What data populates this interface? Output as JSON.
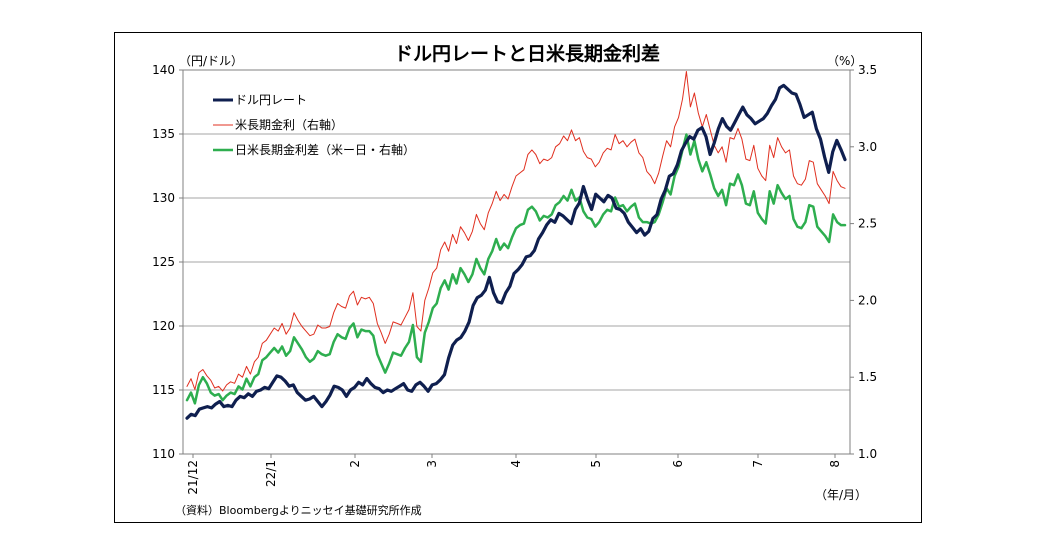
{
  "chart_data": {
    "type": "line",
    "title": "ドル円レートと日米長期金利差",
    "ylabel_left": "（円/ドル）",
    "ylabel_right": "（%）",
    "xlabel": "（年/月）",
    "source": "（資料）Bloombergよりニッセイ基礎研究所作成",
    "ylim_left": [
      110,
      140
    ],
    "ylim_right": [
      1.0,
      3.5
    ],
    "yticks_left": [
      "110",
      "115",
      "120",
      "125",
      "130",
      "135",
      "140"
    ],
    "yticks_right": [
      "1.0",
      "1.5",
      "2.0",
      "2.5",
      "3.0",
      "3.5"
    ],
    "x_tick_labels": [
      "21/12",
      "22/1",
      "2",
      "3",
      "4",
      "5",
      "6",
      "7",
      "8"
    ],
    "grid": "horizontal",
    "legend_position": "top-left",
    "series": [
      {
        "name": "ドル円レート",
        "axis": "left",
        "color": "#0f1f4f",
        "values": [
          112.8,
          113.1,
          113.0,
          113.5,
          113.6,
          113.7,
          113.6,
          113.9,
          114.1,
          113.7,
          113.8,
          113.7,
          114.2,
          114.5,
          114.4,
          114.7,
          114.5,
          114.9,
          115.0,
          115.2,
          115.1,
          115.6,
          116.1,
          116.0,
          115.7,
          115.3,
          115.4,
          114.8,
          114.5,
          114.2,
          114.3,
          114.5,
          114.1,
          113.7,
          114.1,
          114.6,
          115.3,
          115.2,
          115.0,
          114.5,
          115.0,
          115.2,
          115.6,
          115.4,
          115.9,
          115.5,
          115.2,
          115.1,
          114.8,
          115.0,
          114.9,
          115.1,
          115.3,
          115.5,
          115.0,
          114.9,
          115.4,
          115.6,
          115.3,
          114.9,
          115.4,
          115.5,
          115.8,
          116.2,
          117.5,
          118.5,
          118.9,
          119.1,
          119.6,
          120.3,
          121.6,
          122.2,
          122.4,
          122.8,
          123.8,
          122.6,
          121.9,
          121.8,
          122.6,
          123.1,
          124.1,
          124.4,
          124.8,
          125.4,
          125.5,
          125.9,
          126.8,
          127.3,
          127.9,
          128.3,
          128.1,
          128.8,
          128.6,
          128.3,
          128.0,
          129.1,
          129.6,
          130.9,
          129.9,
          129.1,
          130.3,
          130.0,
          129.7,
          130.2,
          130.0,
          129.2,
          129.1,
          128.8,
          128.1,
          127.7,
          127.3,
          127.6,
          127.1,
          127.4,
          128.4,
          128.7,
          129.9,
          130.6,
          131.7,
          131.9,
          132.6,
          133.7,
          134.3,
          134.8,
          134.6,
          135.3,
          135.5,
          134.8,
          133.4,
          134.3,
          135.4,
          136.2,
          135.6,
          135.3,
          135.9,
          136.5,
          137.1,
          136.5,
          136.2,
          135.8,
          136.0,
          136.2,
          136.6,
          137.2,
          137.7,
          138.6,
          138.8,
          138.5,
          138.2,
          138.1,
          137.3,
          136.3,
          136.5,
          136.7,
          135.4,
          134.6,
          133.2,
          132.0,
          133.6,
          134.5,
          133.8,
          133.0
        ]
      },
      {
        "name": "米長期金利（右軸）",
        "axis": "right",
        "color": "#e03020",
        "values": [
          1.44,
          1.49,
          1.42,
          1.53,
          1.55,
          1.51,
          1.48,
          1.43,
          1.44,
          1.41,
          1.45,
          1.47,
          1.46,
          1.52,
          1.5,
          1.57,
          1.52,
          1.6,
          1.63,
          1.72,
          1.74,
          1.78,
          1.82,
          1.8,
          1.85,
          1.78,
          1.82,
          1.92,
          1.87,
          1.83,
          1.8,
          1.77,
          1.78,
          1.84,
          1.82,
          1.82,
          1.83,
          1.92,
          1.98,
          1.96,
          1.95,
          2.03,
          2.06,
          1.97,
          2.02,
          2.01,
          2.02,
          1.98,
          1.85,
          1.79,
          1.72,
          1.78,
          1.86,
          1.85,
          1.84,
          1.89,
          1.94,
          2.05,
          1.83,
          1.8,
          2.0,
          2.08,
          2.18,
          2.21,
          2.33,
          2.38,
          2.32,
          2.43,
          2.37,
          2.48,
          2.44,
          2.39,
          2.45,
          2.56,
          2.5,
          2.46,
          2.57,
          2.63,
          2.71,
          2.65,
          2.69,
          2.66,
          2.74,
          2.81,
          2.83,
          2.85,
          2.95,
          2.98,
          2.95,
          2.89,
          2.92,
          2.91,
          2.93,
          3.0,
          3.02,
          3.07,
          3.04,
          3.11,
          3.04,
          3.06,
          2.97,
          2.93,
          2.92,
          2.87,
          2.9,
          2.96,
          2.99,
          2.98,
          3.08,
          3.02,
          3.04,
          3.0,
          3.03,
          3.05,
          2.96,
          2.93,
          2.84,
          2.81,
          2.76,
          2.83,
          2.94,
          3.04,
          3.0,
          3.13,
          3.19,
          3.31,
          3.49,
          3.26,
          3.35,
          3.22,
          3.13,
          3.21,
          3.11,
          3.01,
          2.96,
          3.0,
          2.9,
          3.06,
          3.05,
          3.12,
          3.05,
          2.92,
          2.91,
          3.01,
          2.86,
          2.81,
          2.78,
          3.01,
          2.93,
          3.06,
          3.0,
          2.96,
          2.98,
          2.81,
          2.76,
          2.75,
          2.79,
          2.91,
          2.9,
          2.76,
          2.72,
          2.68,
          2.63,
          2.84,
          2.78,
          2.74,
          2.73
        ]
      },
      {
        "name": "日米長期金利差（米ー日・右軸）",
        "axis": "right",
        "color": "#2eae4f",
        "values": [
          1.35,
          1.4,
          1.33,
          1.45,
          1.5,
          1.46,
          1.4,
          1.38,
          1.39,
          1.35,
          1.38,
          1.4,
          1.39,
          1.44,
          1.42,
          1.49,
          1.44,
          1.5,
          1.52,
          1.61,
          1.63,
          1.66,
          1.69,
          1.66,
          1.7,
          1.64,
          1.67,
          1.76,
          1.72,
          1.68,
          1.63,
          1.6,
          1.62,
          1.67,
          1.65,
          1.64,
          1.65,
          1.73,
          1.78,
          1.76,
          1.75,
          1.82,
          1.85,
          1.76,
          1.81,
          1.8,
          1.8,
          1.77,
          1.65,
          1.59,
          1.53,
          1.59,
          1.66,
          1.65,
          1.64,
          1.69,
          1.73,
          1.84,
          1.63,
          1.6,
          1.79,
          1.86,
          1.95,
          1.98,
          2.08,
          2.13,
          2.07,
          2.17,
          2.11,
          2.21,
          2.17,
          2.12,
          2.17,
          2.27,
          2.21,
          2.17,
          2.27,
          2.32,
          2.4,
          2.33,
          2.37,
          2.34,
          2.41,
          2.47,
          2.49,
          2.5,
          2.59,
          2.61,
          2.58,
          2.52,
          2.55,
          2.54,
          2.56,
          2.62,
          2.64,
          2.68,
          2.65,
          2.72,
          2.65,
          2.67,
          2.58,
          2.54,
          2.53,
          2.48,
          2.51,
          2.56,
          2.59,
          2.58,
          2.67,
          2.61,
          2.62,
          2.58,
          2.61,
          2.63,
          2.54,
          2.51,
          2.51,
          2.5,
          2.51,
          2.56,
          2.64,
          2.73,
          2.69,
          2.81,
          2.87,
          2.98,
          3.08,
          2.95,
          3.04,
          2.92,
          2.84,
          2.9,
          2.82,
          2.73,
          2.68,
          2.72,
          2.62,
          2.76,
          2.75,
          2.82,
          2.75,
          2.63,
          2.62,
          2.71,
          2.57,
          2.53,
          2.5,
          2.71,
          2.63,
          2.75,
          2.7,
          2.66,
          2.68,
          2.53,
          2.48,
          2.47,
          2.51,
          2.62,
          2.61,
          2.48,
          2.45,
          2.42,
          2.38,
          2.56,
          2.51,
          2.49,
          2.49
        ]
      }
    ]
  }
}
